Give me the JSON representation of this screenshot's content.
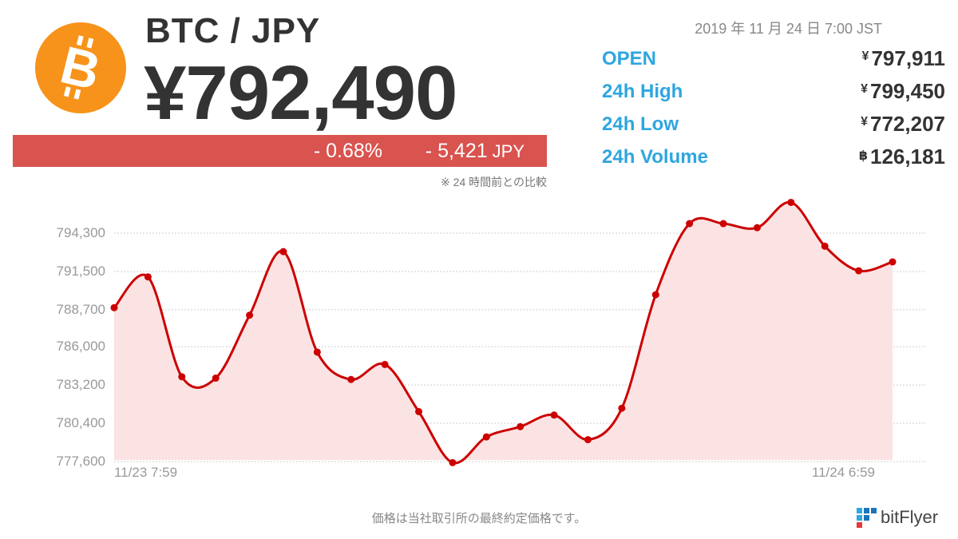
{
  "header": {
    "pair": "BTC / JPY",
    "price": "¥792,490",
    "change_percent": "- 0.68%",
    "change_amount": "- 5,421",
    "change_unit": "JPY",
    "comparison_note": "※ 24 時間前との比較"
  },
  "timestamp": "2019 年 11 月 24 日 7:00 JST",
  "stats": [
    {
      "label": "OPEN",
      "currency": "¥",
      "value": "797,911"
    },
    {
      "label": "24h High",
      "currency": "¥",
      "value": "799,450"
    },
    {
      "label": "24h Low",
      "currency": "¥",
      "value": "772,207"
    },
    {
      "label": "24h Volume",
      "currency": "฿",
      "value": "126,181"
    }
  ],
  "chart_data": {
    "type": "area",
    "x_tick_labels": [
      "11/23 7:59",
      "11/24 6:59"
    ],
    "y_tick_labels": [
      "794,300",
      "791,500",
      "788,700",
      "786,000",
      "783,200",
      "780,400",
      "777,600"
    ],
    "y_ticks": [
      794300,
      791500,
      788700,
      786000,
      783200,
      780400,
      777600
    ],
    "ylim": [
      777600,
      794300
    ],
    "values": [
      788850,
      791100,
      783800,
      783700,
      788300,
      792950,
      785600,
      783600,
      784700,
      781250,
      777520,
      779400,
      780150,
      781000,
      779200,
      781500,
      789800,
      795000,
      795000,
      794700,
      796550,
      793350,
      791550,
      792200
    ],
    "line_color": "#cc0000",
    "fill_color": "#fbe3e3",
    "grid": "horizontal dashed"
  },
  "footer": {
    "disclaimer": "価格は当社取引所の最終約定価格です。",
    "brand": "bitFlyer"
  },
  "colors": {
    "bitcoin_orange": "#F7931A",
    "change_red": "#d9534f",
    "label_blue": "#2ea6e0"
  }
}
